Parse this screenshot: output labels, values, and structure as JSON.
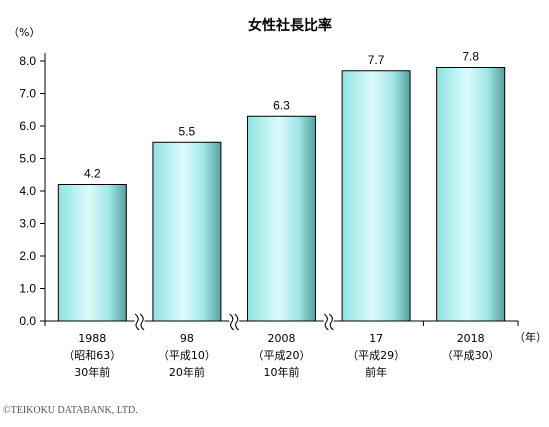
{
  "chart_data": {
    "type": "bar",
    "title": "女性社長比率",
    "y_unit": "（%）",
    "x_unit": "（年）",
    "ylim": [
      0,
      8.0
    ],
    "yticks": [
      "0.0",
      "1.0",
      "2.0",
      "3.0",
      "4.0",
      "5.0",
      "6.0",
      "7.0",
      "8.0"
    ],
    "categories": [
      [
        "1988",
        "（昭和63）",
        "30年前"
      ],
      [
        "98",
        "（平成10）",
        "20年前"
      ],
      [
        "2008",
        "（平成20）",
        "10年前"
      ],
      [
        "17",
        "（平成29）",
        "前年"
      ],
      [
        "2018",
        "（平成30）"
      ]
    ],
    "values": [
      4.2,
      5.5,
      6.3,
      7.7,
      7.8
    ],
    "value_labels": [
      "4.2",
      "5.5",
      "6.3",
      "7.7",
      "7.8"
    ],
    "axis_breaks_after": [
      0,
      1,
      2
    ],
    "bar_color": "#7fdada",
    "grid": false
  },
  "footer": {
    "copyright": "©TEIKOKU DATABANK, LTD."
  }
}
